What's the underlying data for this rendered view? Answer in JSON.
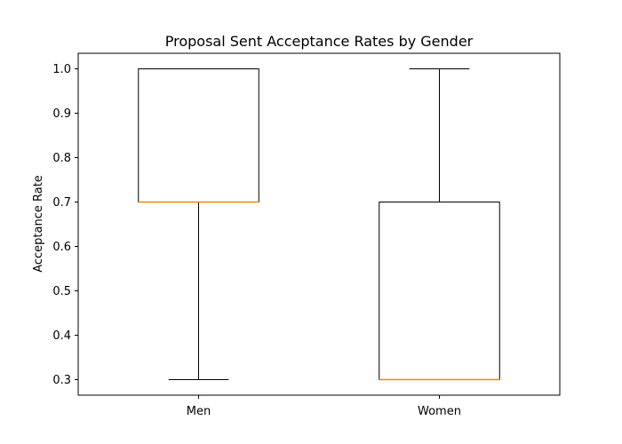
{
  "chart_data": {
    "type": "box",
    "title": "Proposal Sent Acceptance Rates by Gender",
    "xlabel": "",
    "ylabel": "Acceptance Rate",
    "ylim": [
      0.265,
      1.035
    ],
    "yticks": [
      "0.3",
      "0.4",
      "0.5",
      "0.6",
      "0.7",
      "0.8",
      "0.9",
      "1.0"
    ],
    "ytick_values": [
      0.3,
      0.4,
      0.5,
      0.6,
      0.7,
      0.8,
      0.9,
      1.0
    ],
    "categories": [
      "Men",
      "Women"
    ],
    "boxes": [
      {
        "category": "Men",
        "whisker_low": 0.3,
        "q1": 0.7,
        "median": 0.7,
        "q3": 1.0,
        "whisker_high": 1.0
      },
      {
        "category": "Women",
        "whisker_low": 0.3,
        "q1": 0.3,
        "median": 0.3,
        "q3": 0.7,
        "whisker_high": 1.0
      }
    ],
    "grid": false,
    "colors": {
      "box": "#000000",
      "median": "#ff7f0e"
    }
  }
}
